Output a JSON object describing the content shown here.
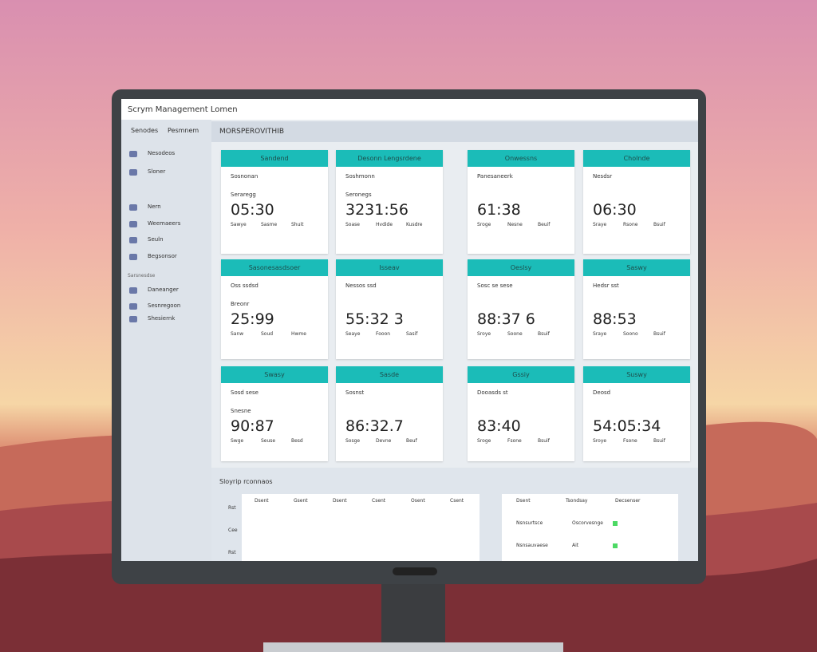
{
  "header": {
    "title": "Scrym Management Lomen"
  },
  "sidebar": {
    "tabs": [
      "Senodes",
      "Pesmnem"
    ],
    "items": [
      "Nesodeos",
      "Sloner",
      "Nern",
      "Weemaeers",
      "Seuln",
      "Begsonsor"
    ],
    "section": "Sarsnesdse",
    "section_items": [
      "Daneanger",
      "Sesnregoon",
      "Shesiernk"
    ]
  },
  "content": {
    "title": "MORSPEROVITHIB"
  },
  "cards": [
    {
      "header": "Sandend",
      "subtitle": "Sosnonan",
      "label": "Seraregg",
      "value": "05:30",
      "footer": [
        "Sawye",
        "Sasme",
        "Shuit"
      ]
    },
    {
      "header": "Desonn Lengsrdene",
      "subtitle": "Soshmonn",
      "label": "Seronegs",
      "value": "3231:56",
      "footer": [
        "Soase",
        "Hvdide",
        "Kusdre"
      ]
    },
    {
      "header": "Onwessns",
      "subtitle": "Panesaneerk",
      "value": "61:38",
      "footer": [
        "Sroge",
        "Nesne",
        "Beuif"
      ]
    },
    {
      "header": "Cholnde",
      "subtitle": "Nesdsr",
      "value": "06:30",
      "footer": [
        "Sraye",
        "Rsone",
        "Bsuif"
      ]
    },
    {
      "header": "Sasonesasdsoer",
      "subtitle": "Oss ssdsd",
      "label": "Breonr",
      "value": "25:99",
      "footer": [
        "Sanw",
        "Soud",
        "Hwme"
      ]
    },
    {
      "header": "Isseav",
      "subtitle": "Nessos ssd",
      "value": "55:32 3",
      "footer": [
        "Seaye",
        "Fooon",
        "Sasif"
      ]
    },
    {
      "header": "Oeslsy",
      "subtitle": "Sosc se sese",
      "value": "88:37 6",
      "footer": [
        "Sroye",
        "Soone",
        "Bsuif"
      ]
    },
    {
      "header": "Saswy",
      "subtitle": "Hedsr sst",
      "value": "88:53",
      "footer": [
        "Sraye",
        "Soono",
        "Bsuif"
      ]
    },
    {
      "header": "Swasy",
      "subtitle": "Sosd sese",
      "label": "Snesne",
      "value": "90:87",
      "footer": [
        "Swge",
        "Seuse",
        "Besd"
      ]
    },
    {
      "header": "Sasde",
      "subtitle": "Sosnst",
      "value": "86:32.7",
      "footer": [
        "Sosge",
        "Devne",
        "Beuf"
      ]
    },
    {
      "header": "Gssiy",
      "subtitle": "Dooasds st",
      "value": "83:40",
      "footer": [
        "Sroge",
        "Fsone",
        "Bsuif"
      ]
    },
    {
      "header": "Suswy",
      "subtitle": "Deosd",
      "value": "54:05:34",
      "footer": [
        "Sroye",
        "Fsone",
        "Bsuif"
      ]
    }
  ],
  "bottom": {
    "title": "Sloyrip rconnaos",
    "left_headers": [
      "Dsent",
      "Gsent",
      "Dsent",
      "Csent",
      "Osent",
      "Csent"
    ],
    "left_rows": [
      "Rst",
      "Cee",
      "Rst"
    ],
    "right_headers": [
      "Dsent",
      "Tsondsay",
      "Decsenser"
    ],
    "right_rows": [
      [
        "Nsnsurtsce",
        "Oscorvesnge"
      ],
      [
        "Nsnsauvaese",
        "Ait"
      ]
    ]
  }
}
